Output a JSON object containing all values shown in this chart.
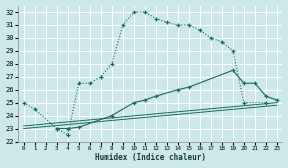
{
  "xlabel": "Humidex (Indice chaleur)",
  "bg_color": "#cce8e8",
  "grid_color": "#ffffff",
  "line_color": "#1a6b5a",
  "xlim": [
    -0.5,
    23.5
  ],
  "ylim": [
    22,
    32.5
  ],
  "xticks": [
    0,
    1,
    2,
    3,
    4,
    5,
    6,
    7,
    8,
    9,
    10,
    11,
    12,
    13,
    14,
    15,
    16,
    17,
    18,
    19,
    20,
    21,
    22,
    23
  ],
  "yticks": [
    22,
    23,
    24,
    25,
    26,
    27,
    28,
    29,
    30,
    31,
    32
  ],
  "curve1_x": [
    0,
    1,
    3,
    4,
    5,
    6,
    7,
    8,
    9,
    10,
    11,
    12,
    13,
    14,
    15,
    16,
    17,
    18,
    19,
    20,
    22
  ],
  "curve1_y": [
    25.0,
    24.5,
    23.0,
    22.5,
    26.5,
    26.5,
    27.0,
    28.0,
    31.0,
    32.0,
    32.0,
    31.5,
    31.2,
    31.0,
    31.0,
    30.6,
    30.0,
    29.7,
    29.0,
    25.0,
    25.0
  ],
  "curve2_x": [
    3,
    4,
    5,
    8,
    10,
    11,
    12,
    14,
    15,
    19,
    20,
    21,
    22,
    23
  ],
  "curve2_y": [
    23.0,
    23.0,
    23.1,
    24.0,
    25.0,
    25.2,
    25.5,
    26.0,
    26.2,
    27.5,
    26.5,
    26.5,
    25.5,
    25.2
  ],
  "curve3_x": [
    0,
    23
  ],
  "curve3_y": [
    23.2,
    25.0
  ],
  "curve4_x": [
    0,
    23
  ],
  "curve4_y": [
    23.0,
    24.8
  ]
}
